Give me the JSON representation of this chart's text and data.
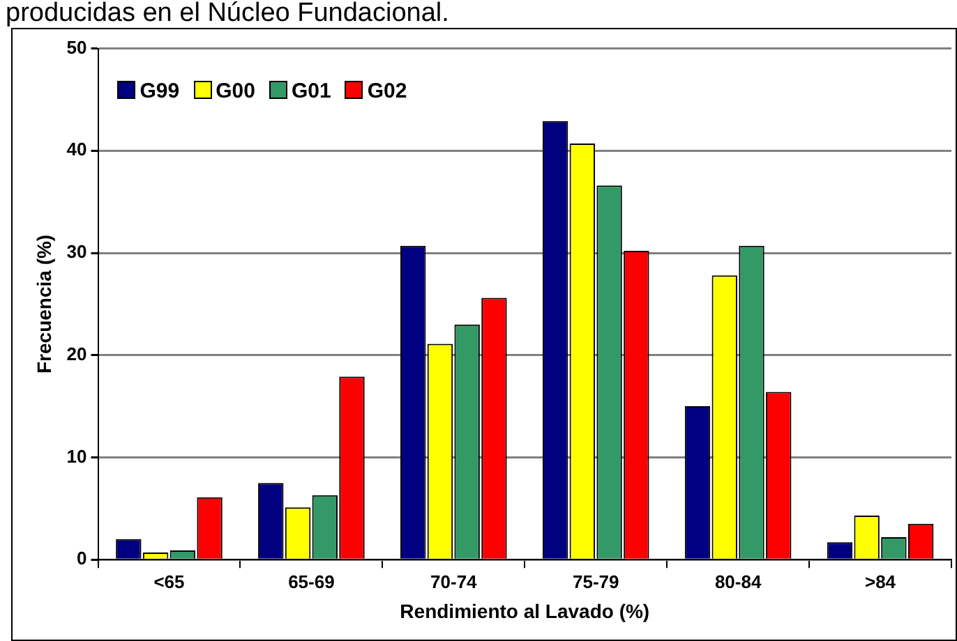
{
  "chart_data": {
    "type": "bar",
    "title": "producidas en el Núcleo Fundacional.",
    "xlabel": "Rendimiento al Lavado (%)",
    "ylabel": "Frecuencia (%)",
    "categories": [
      "<65",
      "65-69",
      "70-74",
      "75-79",
      "80-84",
      ">84"
    ],
    "series": [
      {
        "name": "G99",
        "color": "#000080",
        "values": [
          2.0,
          7.5,
          30.7,
          42.9,
          15.0,
          1.7
        ]
      },
      {
        "name": "G00",
        "color": "#ffff00",
        "values": [
          0.7,
          5.1,
          21.1,
          40.7,
          27.8,
          4.3
        ]
      },
      {
        "name": "G01",
        "color": "#339966",
        "values": [
          0.9,
          6.3,
          23.0,
          36.6,
          30.7,
          2.2
        ]
      },
      {
        "name": "G02",
        "color": "#ff0000",
        "values": [
          6.1,
          17.9,
          25.6,
          30.2,
          16.4,
          3.5
        ]
      }
    ],
    "ylim": [
      0,
      50
    ],
    "yticks": [
      0,
      10,
      20,
      30,
      40,
      50
    ],
    "grid": "y",
    "legend": "top left"
  }
}
